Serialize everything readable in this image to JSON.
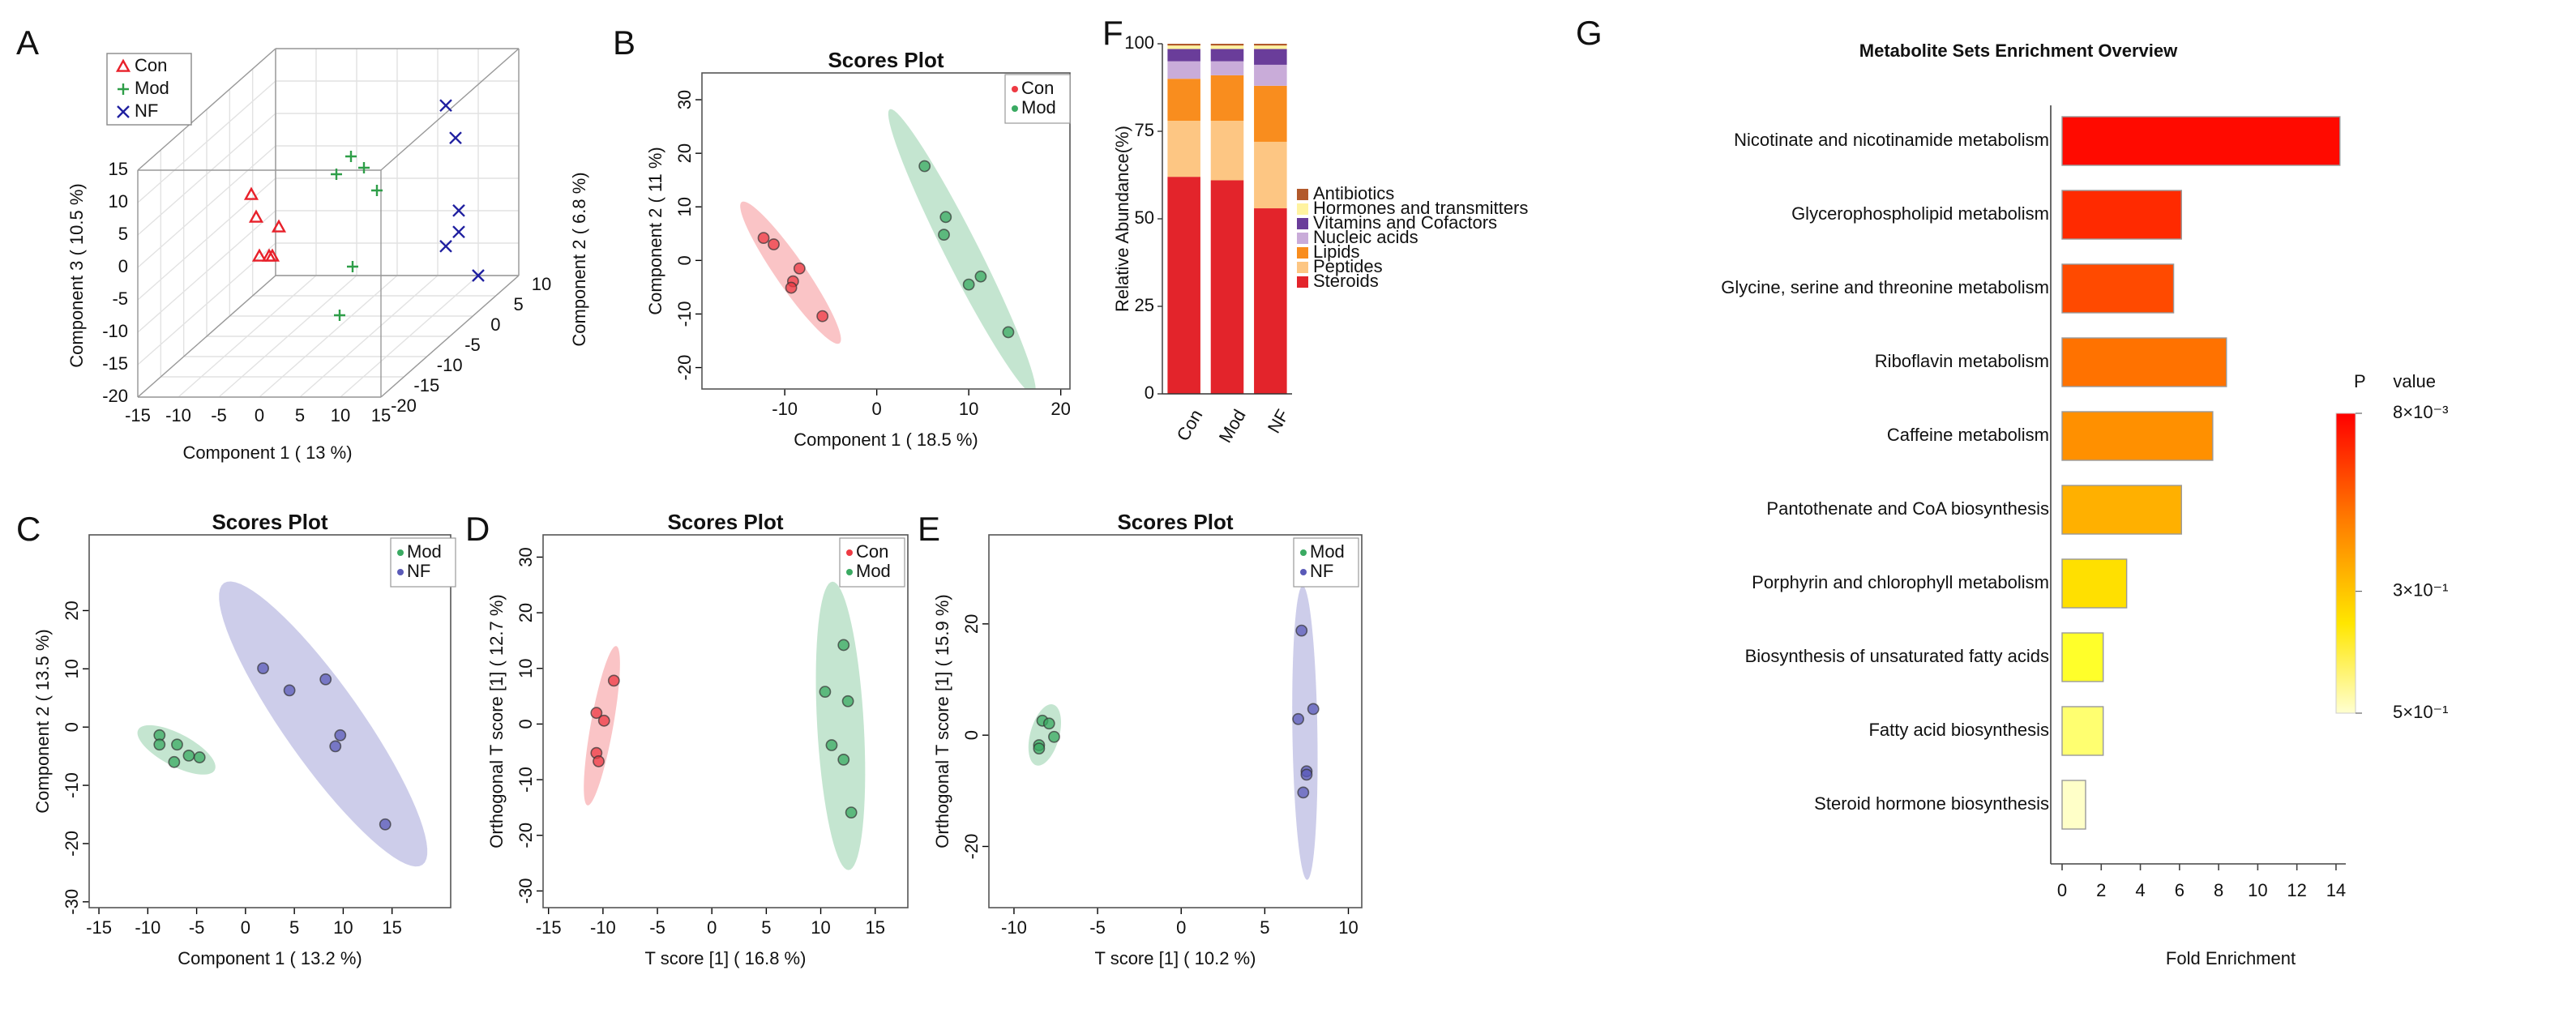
{
  "chart_data": [
    {
      "type": "scatter3d",
      "panel": "A",
      "xlabel": "Component 1 ( 13 %)",
      "ylabel": "Component 2 ( 6.8 %)",
      "zlabel": "Component 3 ( 10.5 %)",
      "xlim": [
        -15,
        15
      ],
      "ylim": [
        -20,
        10
      ],
      "zlim": [
        -20,
        15
      ],
      "xticks": [
        -15,
        -10,
        -5,
        0,
        5,
        10,
        15
      ],
      "yticks": [
        -20,
        -15,
        -10,
        -5,
        0,
        5,
        10
      ],
      "zticks": [
        -20,
        -15,
        -10,
        -5,
        0,
        5,
        10,
        15
      ],
      "series": [
        {
          "name": "Con",
          "color": "#e8202a",
          "marker": "triangle",
          "x": [
            -4.4,
            -3.8,
            -1,
            -3.4,
            -2.2,
            -1.8
          ],
          "y": [
            -14,
            -14,
            -14,
            -14,
            -14,
            -14
          ],
          "z": [
            7.5,
            4,
            2.5,
            -2,
            -2,
            -2
          ]
        },
        {
          "name": "Mod",
          "color": "#2e9e48",
          "marker": "plus",
          "x": [
            2.8,
            4.4,
            1,
            6,
            3,
            1.4
          ],
          "y": [
            -5,
            -5,
            -5,
            -5,
            -5,
            -5
          ],
          "z": [
            7.75,
            6,
            5,
            2.5,
            -9.25,
            -16.75
          ]
        },
        {
          "name": "NF",
          "color": "#2020a0",
          "marker": "x",
          "x": [
            7.7,
            8.9,
            9.3,
            9.3,
            7.7,
            10
          ],
          "y": [
            7,
            7,
            7,
            7,
            7,
            10
          ],
          "z": [
            8.1,
            3.1,
            -8.1,
            -11.4,
            -13.6,
            -20
          ]
        }
      ]
    },
    {
      "type": "scatter",
      "panel": "B",
      "title": "Scores Plot",
      "xlabel": "Component 1 ( 18.5 %)",
      "ylabel": "Component 2 ( 11 %)",
      "xlim": [
        -19,
        21
      ],
      "ylim": [
        -24,
        35
      ],
      "xticks": [
        -10,
        0,
        10,
        20
      ],
      "yticks": [
        -20,
        -10,
        0,
        10,
        20,
        30
      ],
      "series": [
        {
          "name": "Con",
          "color": "#ee3a43",
          "x": [
            -12.3,
            -11.2,
            -8.4,
            -9.1,
            -9.3,
            -5.9
          ],
          "y": [
            4.2,
            3,
            -1.5,
            -3.9,
            -5.1,
            -10.4
          ]
        },
        {
          "name": "Mod",
          "color": "#3aaa62",
          "x": [
            5.2,
            7.5,
            7.3,
            10,
            11.3,
            14.3
          ],
          "y": [
            17.6,
            8.1,
            4.8,
            -4.5,
            -3,
            -13.4
          ]
        }
      ]
    },
    {
      "type": "scatter",
      "panel": "C",
      "title": "Scores Plot",
      "xlabel": "Component 1 ( 13.2 %)",
      "ylabel": "Component 2 ( 13.5 %)",
      "xlim": [
        -16,
        21
      ],
      "ylim": [
        -31,
        33
      ],
      "xticks": [
        -15,
        -10,
        -5,
        0,
        5,
        10,
        15
      ],
      "yticks": [
        -30,
        -20,
        -10,
        0,
        10,
        20
      ],
      "series": [
        {
          "name": "Mod",
          "color": "#3aaa62",
          "x": [
            -8.8,
            -8.8,
            -7,
            -7.3,
            -5.8,
            -4.7
          ],
          "y": [
            -1.4,
            -3,
            -3,
            -6,
            -4.9,
            -5.2
          ]
        },
        {
          "name": "NF",
          "color": "#5a5ab8",
          "x": [
            1.8,
            4.5,
            8.2,
            9.7,
            9.2,
            14.3
          ],
          "y": [
            10.1,
            6.3,
            8.2,
            -1.4,
            -3.3,
            -16.7
          ]
        }
      ]
    },
    {
      "type": "scatter",
      "panel": "D",
      "title": "Scores Plot",
      "xlabel": "T score [1] ( 16.8 %)",
      "ylabel": "Orthogonal T score [1] ( 12.7 %)",
      "xlim": [
        -15.5,
        18
      ],
      "ylim": [
        -33,
        34
      ],
      "xticks": [
        -15,
        -10,
        -5,
        0,
        5,
        10,
        15
      ],
      "yticks": [
        -30,
        -20,
        -10,
        0,
        10,
        20,
        30
      ],
      "series": [
        {
          "name": "Con",
          "color": "#ee3a43",
          "x": [
            -9,
            -10.6,
            -9.9,
            -10.6,
            -10.4
          ],
          "y": [
            7.8,
            2,
            0.6,
            -5.2,
            -6.7
          ]
        },
        {
          "name": "Mod",
          "color": "#3aaa62",
          "x": [
            12.1,
            10.4,
            12.5,
            11,
            12.1,
            12.8
          ],
          "y": [
            14.2,
            5.8,
            4.1,
            -3.8,
            -6.4,
            -15.9
          ]
        }
      ]
    },
    {
      "type": "scatter",
      "panel": "E",
      "title": "Scores Plot",
      "xlabel": "T score [1] ( 10.2 %)",
      "ylabel": "Orthogonal T score [1] ( 15.9 %)",
      "xlim": [
        -11.5,
        10.8
      ],
      "ylim": [
        -31,
        36
      ],
      "xticks": [
        -10,
        -5,
        0,
        5,
        10
      ],
      "yticks": [
        -20,
        0,
        20
      ],
      "series": [
        {
          "name": "Mod",
          "color": "#3aaa62",
          "x": [
            -8.3,
            -7.9,
            -7.6,
            -8.5,
            -8.5
          ],
          "y": [
            2.6,
            2.1,
            -0.3,
            -1.8,
            -2.4
          ]
        },
        {
          "name": "NF",
          "color": "#5a5ab8",
          "x": [
            7.2,
            7.9,
            7,
            7.5,
            7.5,
            7.3
          ],
          "y": [
            18.8,
            4.7,
            2.9,
            -6.5,
            -7.1,
            -10.3
          ]
        }
      ]
    },
    {
      "type": "stacked_bar",
      "panel": "F",
      "ylabel": "Relative Abundance(%)",
      "categories": [
        "Con",
        "Mod",
        "NF"
      ],
      "ylim": [
        0,
        100
      ],
      "yticks": [
        0,
        25,
        50,
        75,
        100
      ],
      "series": [
        {
          "name": "Steroids",
          "color": "#e3242b",
          "values": [
            62,
            61,
            53
          ]
        },
        {
          "name": "Peptides",
          "color": "#fdc683",
          "values": [
            16,
            17,
            19
          ]
        },
        {
          "name": "Lipids",
          "color": "#f98d1e",
          "values": [
            12,
            13,
            16
          ]
        },
        {
          "name": "Nucleic acids",
          "color": "#c9acd9",
          "values": [
            5,
            4,
            6
          ]
        },
        {
          "name": "Vitamins and Cofactors",
          "color": "#6a3d9a",
          "values": [
            3.5,
            3.5,
            4.5
          ]
        },
        {
          "name": "Hormones and transmitters",
          "color": "#fff3a0",
          "values": [
            1,
            1,
            1
          ]
        },
        {
          "name": "Antibiotics",
          "color": "#b2592b",
          "values": [
            0.5,
            0.5,
            0.5
          ]
        }
      ]
    },
    {
      "type": "barh",
      "panel": "G",
      "title": "Metabolite Sets Enrichment Overview",
      "xlabel": "Fold Enrichment",
      "categories": [
        "Nicotinate and nicotinamide metabolism",
        "Glycerophospholipid metabolism",
        "Glycine, serine and threonine metabolism",
        "Riboflavin metabolism",
        "Caffeine metabolism",
        "Pantothenate and CoA biosynthesis",
        "Porphyrin and chlorophyll metabolism",
        "Biosynthesis of unsaturated fatty acids",
        "Fatty acid biosynthesis",
        "Steroid hormone biosynthesis"
      ],
      "values": [
        14.2,
        6.1,
        5.7,
        8.4,
        7.7,
        6.1,
        3.3,
        2.1,
        2.1,
        1.2
      ],
      "colors": [
        "#ff0a00",
        "#ff2a00",
        "#ff4a00",
        "#ff7200",
        "#ff9000",
        "#ffb000",
        "#ffe000",
        "#ffff2a",
        "#ffff70",
        "#ffffc8"
      ],
      "xlim": [
        0,
        14.5
      ],
      "xticks": [
        0,
        2,
        4,
        6,
        8,
        10,
        12,
        14
      ],
      "colorbar": {
        "title": "P value",
        "clim": [
          0.008,
          0.5
        ],
        "ticks": [
          {
            "value": 0.008,
            "label": "8×10⁻³"
          },
          {
            "value": 0.3,
            "label": "3×10⁻¹"
          },
          {
            "value": 0.5,
            "label": "5×10⁻¹"
          }
        ]
      }
    }
  ]
}
